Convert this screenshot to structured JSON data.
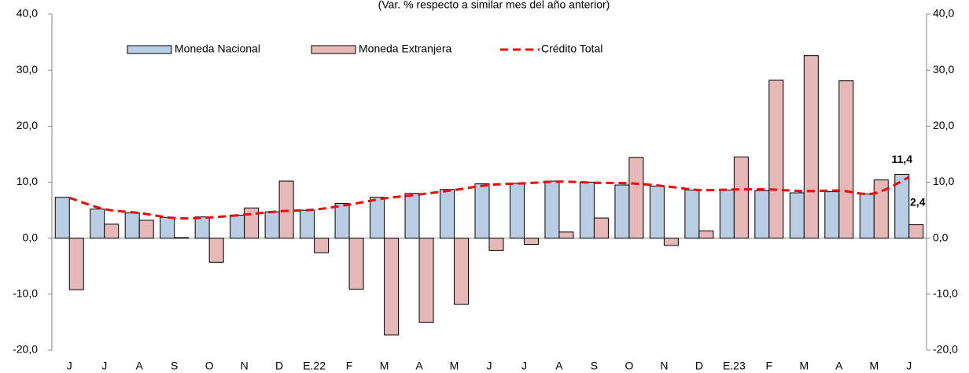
{
  "chart_data": {
    "type": "bar-line",
    "subtitle": "(Var. % respecto a similar mes del año anterior)",
    "categories": [
      "J",
      "J",
      "A",
      "S",
      "O",
      "N",
      "D",
      "E.22",
      "F",
      "M",
      "A",
      "M",
      "J",
      "J",
      "A",
      "S",
      "O",
      "N",
      "D",
      "E.23",
      "F",
      "M",
      "A",
      "M",
      "J"
    ],
    "series": [
      {
        "name": "Moneda Nacional",
        "type": "bar",
        "color": "#b9cde5",
        "values": [
          7.3,
          5.2,
          4.5,
          3.7,
          3.8,
          4.1,
          4.7,
          5.0,
          6.2,
          7.3,
          8.0,
          8.7,
          9.7,
          9.8,
          10.2,
          10.0,
          9.5,
          9.3,
          8.6,
          8.6,
          8.5,
          8.1,
          8.3,
          7.9,
          11.4
        ],
        "value_labels": [
          null,
          null,
          null,
          null,
          null,
          null,
          null,
          null,
          null,
          null,
          null,
          null,
          null,
          null,
          null,
          null,
          null,
          null,
          null,
          null,
          null,
          null,
          null,
          null,
          "11,4"
        ]
      },
      {
        "name": "Moneda Extranjera",
        "type": "bar",
        "color": "#e6b9b8",
        "values": [
          -9.2,
          2.5,
          3.2,
          0.1,
          -4.3,
          5.4,
          10.2,
          -2.6,
          -9.1,
          -17.3,
          -15.0,
          -11.8,
          -2.2,
          -1.1,
          1.1,
          3.6,
          14.4,
          -1.3,
          1.3,
          14.5,
          28.2,
          32.6,
          28.1,
          10.4,
          2.4
        ],
        "value_labels": [
          null,
          null,
          null,
          null,
          null,
          null,
          null,
          null,
          null,
          null,
          null,
          null,
          null,
          null,
          null,
          null,
          null,
          null,
          null,
          null,
          null,
          null,
          null,
          null,
          "2,4"
        ]
      },
      {
        "name": "Crédito Total",
        "type": "line",
        "color": "#ff0000",
        "values": [
          7.2,
          5.2,
          4.5,
          3.6,
          3.7,
          4.2,
          4.8,
          5.1,
          6.0,
          7.1,
          7.8,
          8.6,
          9.5,
          9.8,
          10.1,
          9.9,
          9.8,
          9.3,
          8.6,
          8.7,
          8.7,
          8.4,
          8.5,
          8.0,
          10.9
        ]
      }
    ],
    "ylim": [
      -20,
      40
    ],
    "yticks": [
      {
        "value": -20,
        "label": "-20,0"
      },
      {
        "value": -10,
        "label": "-10,0"
      },
      {
        "value": 0,
        "label": "0,0"
      },
      {
        "value": 10,
        "label": "10,0"
      },
      {
        "value": 20,
        "label": "20,0"
      },
      {
        "value": 30,
        "label": "30,0"
      },
      {
        "value": 40,
        "label": "40,0"
      }
    ],
    "y2lim": [
      -20,
      40
    ],
    "y2ticks": [
      {
        "value": -20,
        "label": "-20,0"
      },
      {
        "value": -10,
        "label": "-10,0"
      },
      {
        "value": 0,
        "label": "0,0"
      },
      {
        "value": 10,
        "label": "10,0"
      },
      {
        "value": 20,
        "label": "20,0"
      },
      {
        "value": 30,
        "label": "30,0"
      },
      {
        "value": 40,
        "label": "40,0"
      }
    ],
    "legend": "top",
    "grid": false
  }
}
